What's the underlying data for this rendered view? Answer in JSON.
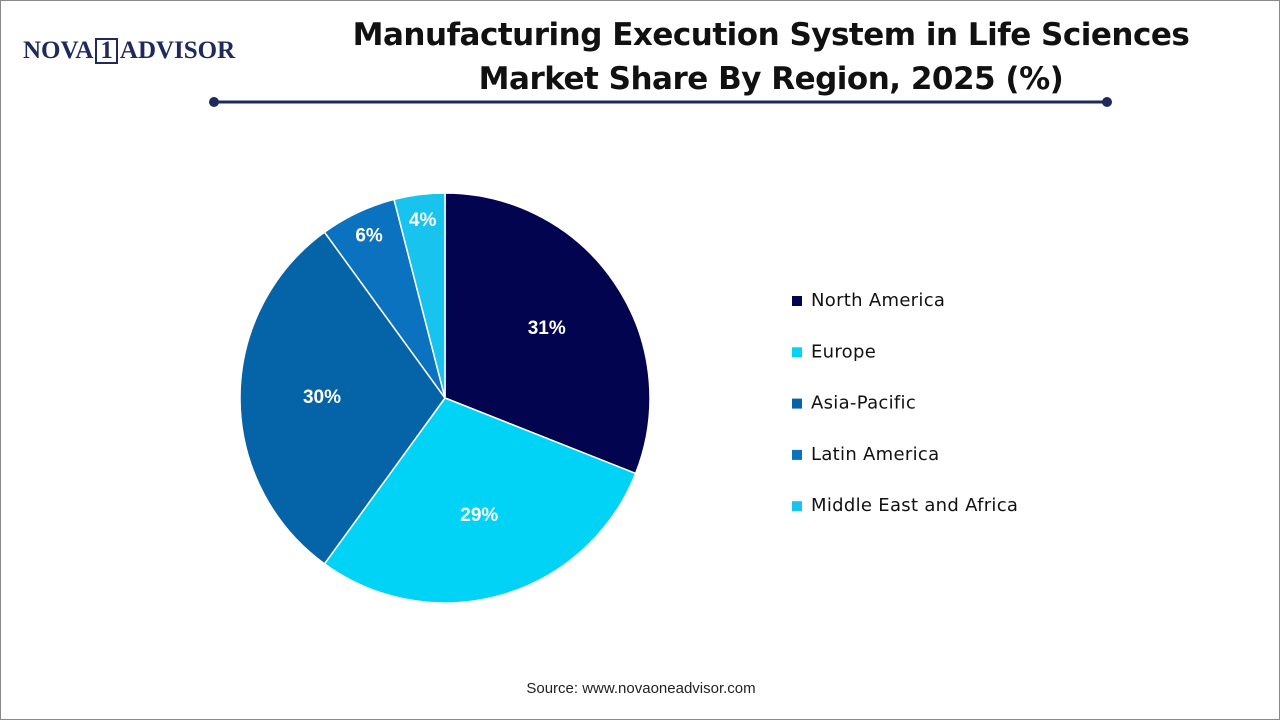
{
  "logo": {
    "left": "NOVA",
    "mid": "1",
    "right": "ADVISOR"
  },
  "chart_data": {
    "type": "pie",
    "title": "Manufacturing Execution System in Life Sciences Market Share By Region, 2025 (%)",
    "categories": [
      "North America",
      "Europe",
      "Asia-Pacific",
      "Latin America",
      "Middle East and Africa"
    ],
    "values": [
      31,
      29,
      30,
      6,
      4
    ],
    "value_labels": [
      "31%",
      "29%",
      "30%",
      "6%",
      "4%"
    ],
    "colors": [
      "#03044f",
      "#00d3f5",
      "#0563a8",
      "#0a72bf",
      "#18c3ee"
    ],
    "legend": "right",
    "source": "Source: www.novaoneadvisor.com"
  }
}
